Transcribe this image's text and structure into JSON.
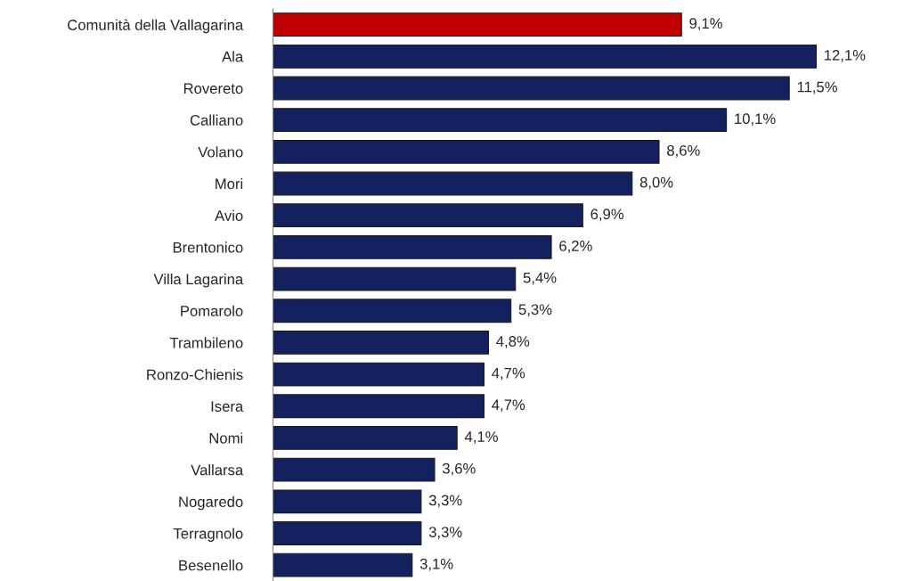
{
  "chart_data": {
    "type": "bar",
    "orientation": "horizontal",
    "categories": [
      "Comunità della Vallagarina",
      "Ala",
      "Rovereto",
      "Calliano",
      "Volano",
      "Mori",
      "Avio",
      "Brentonico",
      "Villa Lagarina",
      "Pomarolo",
      "Trambileno",
      "Ronzo-Chienis",
      "Isera",
      "Nomi",
      "Vallarsa",
      "Nogaredo",
      "Terragnolo",
      "Besenello"
    ],
    "values": [
      9.1,
      12.1,
      11.5,
      10.1,
      8.6,
      8.0,
      6.9,
      6.2,
      5.4,
      5.3,
      4.8,
      4.7,
      4.7,
      4.1,
      3.6,
      3.3,
      3.3,
      3.1
    ],
    "colors": [
      "#c00000",
      "#14215f",
      "#14215f",
      "#14215f",
      "#14215f",
      "#14215f",
      "#14215f",
      "#14215f",
      "#14215f",
      "#14215f",
      "#14215f",
      "#14215f",
      "#14215f",
      "#14215f",
      "#14215f",
      "#14215f",
      "#14215f",
      "#14215f"
    ],
    "value_labels": [
      "9,1%",
      "12,1%",
      "11,5%",
      "10,1%",
      "8,6%",
      "8,0%",
      "6,9%",
      "6,2%",
      "5,4%",
      "5,3%",
      "4,8%",
      "4,7%",
      "4,7%",
      "4,1%",
      "3,6%",
      "3,3%",
      "3,3%",
      "3,1%"
    ],
    "tick_labels": "y",
    "grid": false,
    "legend": false
  }
}
